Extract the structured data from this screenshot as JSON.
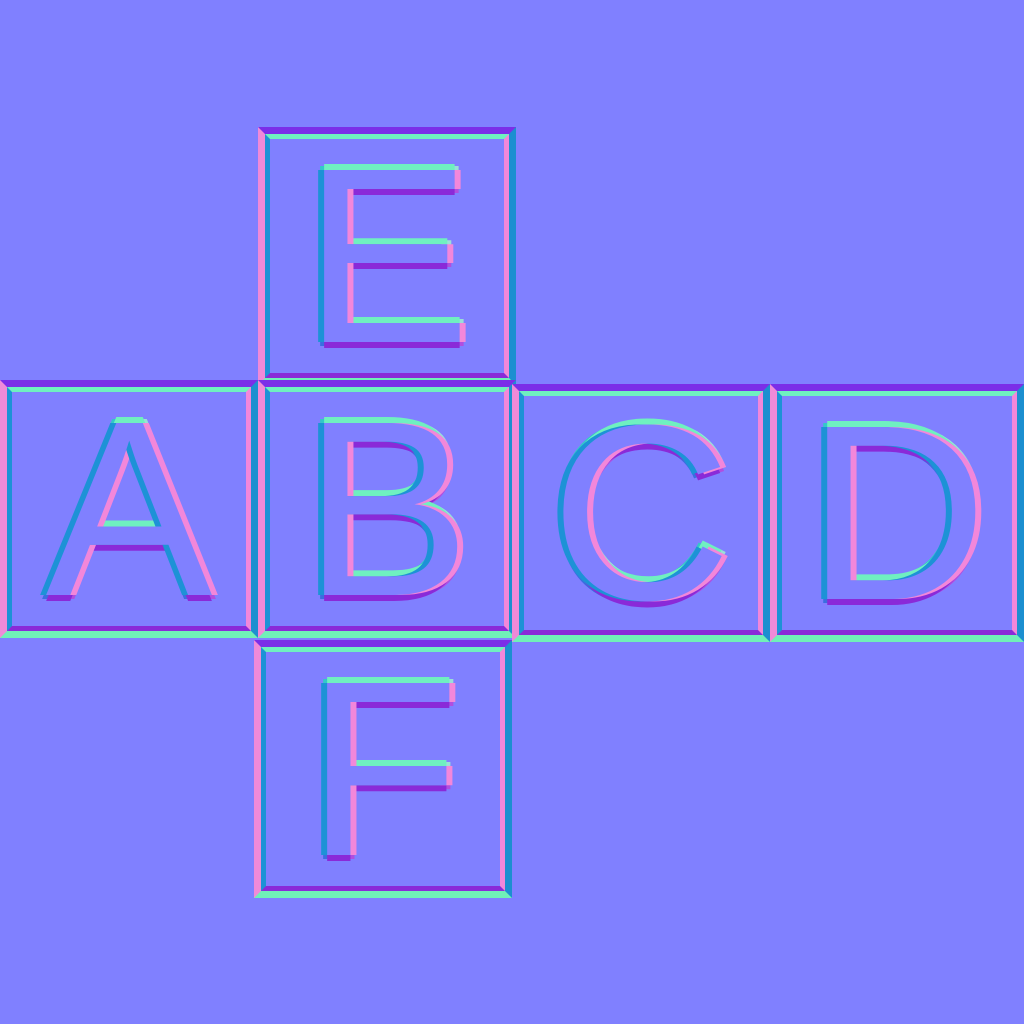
{
  "faces": {
    "a": {
      "letter": "A"
    },
    "b": {
      "letter": "B"
    },
    "c": {
      "letter": "C"
    },
    "d": {
      "letter": "D"
    },
    "e": {
      "letter": "E"
    },
    "f": {
      "letter": "F"
    }
  },
  "colors": {
    "background": "#8080ff",
    "edge_top": "#7b2ee8",
    "edge_left": "#f08ad8",
    "edge_bottom": "#70f0b8",
    "edge_right": "#1c8fd0"
  }
}
